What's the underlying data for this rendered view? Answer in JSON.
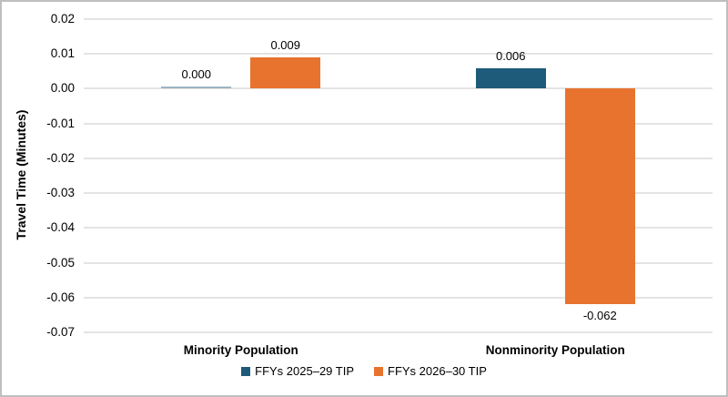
{
  "chart_data": {
    "type": "bar",
    "title": "",
    "xlabel": "",
    "ylabel": "Travel Time (Minutes)",
    "categories": [
      "Minority Population",
      "Nonminority Population"
    ],
    "series": [
      {
        "name": "FFYs 2025–29 TIP",
        "color": "#1E5B7B",
        "values": [
          0.0,
          0.006
        ],
        "value_labels": [
          "0.000",
          "0.006"
        ]
      },
      {
        "name": "FFYs 2026–30 TIP",
        "color": "#E8732E",
        "values": [
          0.009,
          -0.062
        ],
        "value_labels": [
          "0.009",
          "-0.062"
        ]
      }
    ],
    "ylim": [
      -0.07,
      0.02
    ],
    "ytick_labels": [
      "0.02",
      "0.01",
      "0.00",
      "-0.01",
      "-0.02",
      "-0.03",
      "-0.04",
      "-0.05",
      "-0.06",
      "-0.07"
    ],
    "ytick_values": [
      0.02,
      0.01,
      0.0,
      -0.01,
      -0.02,
      -0.03,
      -0.04,
      -0.05,
      -0.06,
      -0.07
    ],
    "grid": true,
    "legend_position": "bottom"
  },
  "colors": {
    "gridline": "#E4E4E4",
    "frame_border": "#BFBFBF",
    "text": "#000000",
    "background": "#FFFFFF"
  }
}
